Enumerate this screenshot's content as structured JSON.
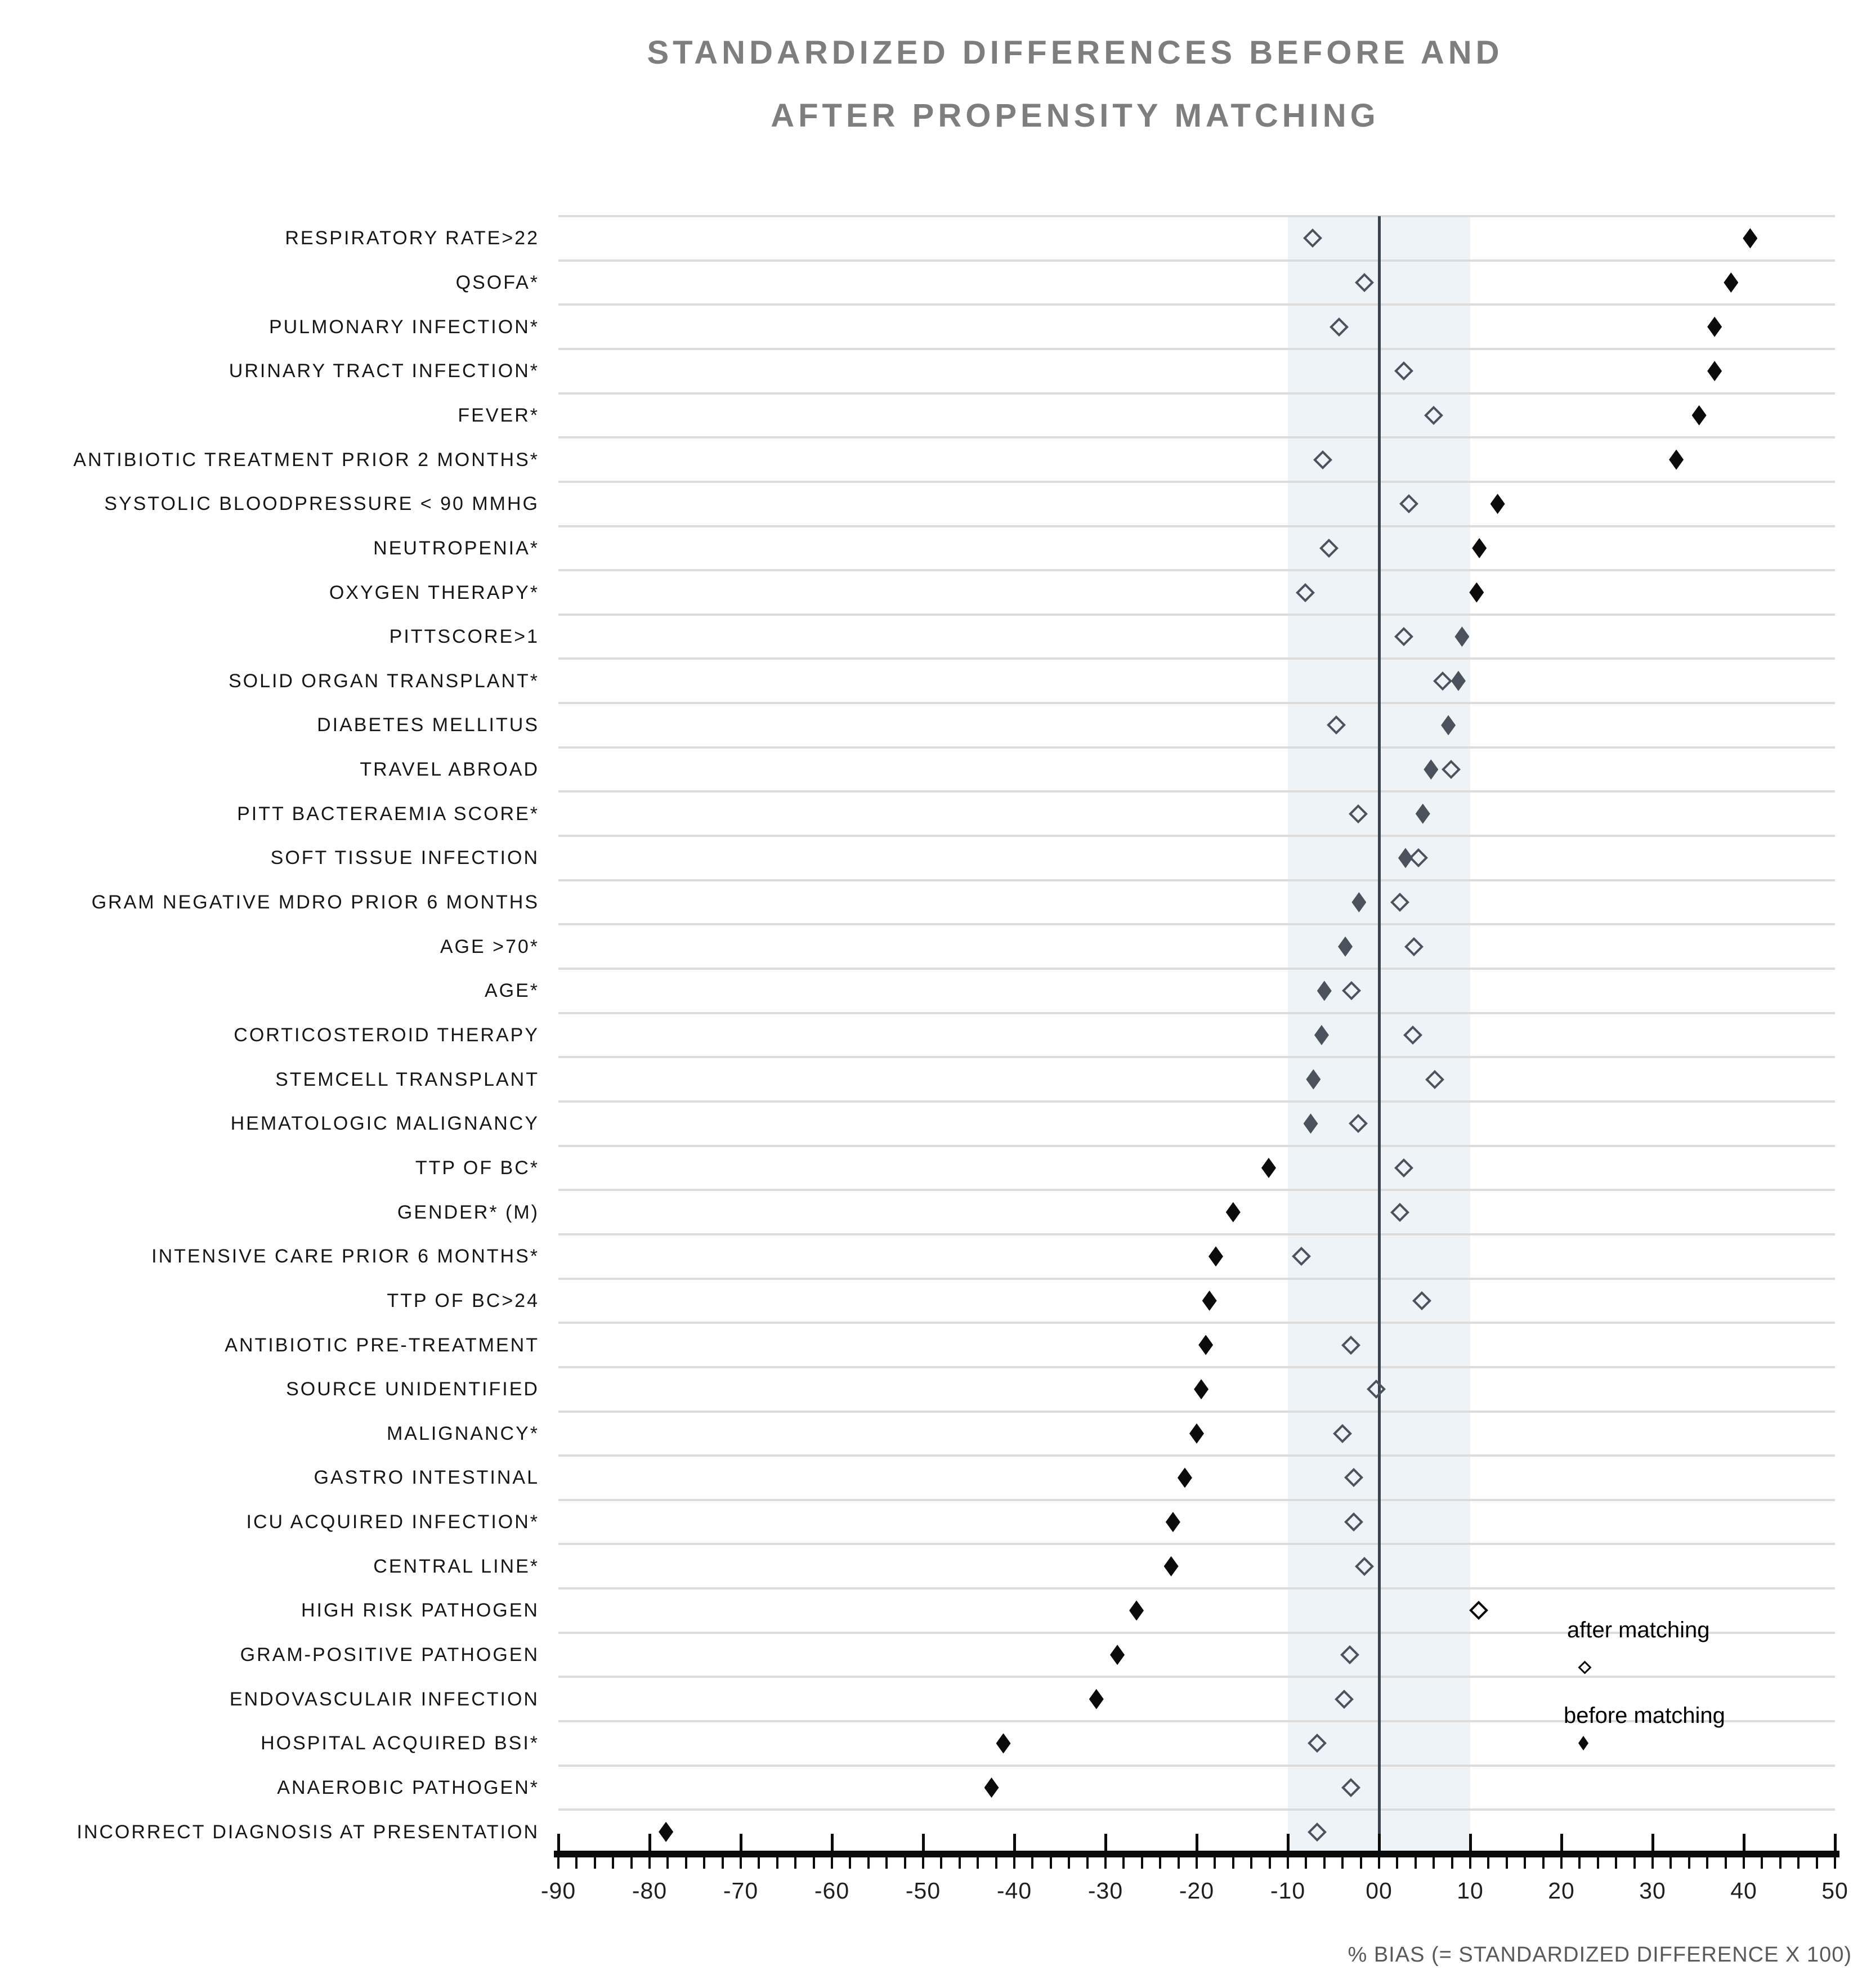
{
  "title": {
    "line1": "STANDARDIZED DIFFERENCES BEFORE AND",
    "line2": "AFTER PROPENSITY MATCHING"
  },
  "xaxis": {
    "label": "% BIAS (= STANDARDIZED DIFFERENCE X 100)",
    "ticks": [
      "-90",
      "-80",
      "-70",
      "-60",
      "-50",
      "-40",
      "-30",
      "-20",
      "-10",
      "00",
      "10",
      "20",
      "30",
      "40",
      "50"
    ]
  },
  "legend": {
    "after": "after matching",
    "before": "before matching"
  },
  "colors": {
    "marker_in_band": "#4a535d",
    "marker_out_band": "#0b0b0b",
    "band_fill": "#eef3f8",
    "gridline": "#dcdcdc",
    "zero_line": "#3a424c",
    "title_text": "#7e7e7e",
    "axis_caption": "#595959"
  },
  "chart_data": {
    "type": "scatter",
    "subtype": "horizontal-dot-plot-love-plot",
    "title": "STANDARDIZED DIFFERENCES BEFORE AND AFTER PROPENSITY MATCHING",
    "xlabel": "% BIAS (= STANDARDIZED DIFFERENCE X 100)",
    "ylabel": "",
    "xlim": [
      -90,
      50
    ],
    "xtick_values": [
      -90,
      -80,
      -70,
      -60,
      -50,
      -40,
      -30,
      -20,
      -10,
      0,
      10,
      20,
      30,
      40,
      50
    ],
    "minor_tick_step": 2,
    "shaded_band": [
      -10,
      10
    ],
    "grid": "horizontal",
    "legend_position": "inside-right",
    "categories": [
      "RESPIRATORY RATE>22",
      "QSOFA*",
      "PULMONARY INFECTION*",
      "URINARY TRACT INFECTION*",
      "FEVER*",
      "ANTIBIOTIC TREATMENT PRIOR 2 MONTHS*",
      "SYSTOLIC BLOODPRESSURE < 90 MMHG",
      "NEUTROPENIA*",
      "OXYGEN THERAPY*",
      "PITTSCORE>1",
      "SOLID ORGAN TRANSPLANT*",
      "DIABETES MELLITUS",
      "TRAVEL ABROAD",
      "PITT BACTERAEMIA SCORE*",
      "SOFT TISSUE INFECTION",
      "GRAM NEGATIVE MDRO PRIOR 6 MONTHS",
      "AGE >70*",
      "AGE*",
      "CORTICOSTEROID THERAPY",
      "STEMCELL TRANSPLANT",
      "HEMATOLOGIC MALIGNANCY",
      "TTP OF BC*",
      "GENDER* (M)",
      "INTENSIVE CARE PRIOR 6 MONTHS*",
      "TTP OF BC>24",
      "ANTIBIOTIC PRE-TREATMENT",
      "SOURCE UNIDENTIFIED",
      "MALIGNANCY*",
      "GASTRO INTESTINAL",
      "ICU ACQUIRED INFECTION*",
      "CENTRAL LINE*",
      "HIGH RISK PATHOGEN",
      "GRAM-POSITIVE PATHOGEN",
      "ENDOVASCULAIR INFECTION",
      "HOSPITAL ACQUIRED BSI*",
      "ANAEROBIC PATHOGEN*",
      "INCORRECT DIAGNOSIS AT PRESENTATION"
    ],
    "series": [
      {
        "name": "before matching",
        "marker": "filled-diamond",
        "values": [
          40.7,
          38.6,
          36.8,
          36.8,
          35.1,
          32.6,
          13.0,
          11.0,
          10.7,
          9.1,
          8.7,
          7.6,
          5.7,
          4.8,
          2.9,
          -2.2,
          -3.7,
          -6.0,
          -6.3,
          -7.2,
          -7.5,
          -12.1,
          -16.0,
          -17.9,
          -18.6,
          -19.0,
          -19.5,
          -20.0,
          -21.3,
          -22.6,
          -22.8,
          -26.6,
          -28.7,
          -31.0,
          -41.2,
          -42.5,
          -78.2
        ]
      },
      {
        "name": "after matching",
        "marker": "open-diamond",
        "values": [
          -7.3,
          -1.6,
          -4.4,
          2.7,
          6.0,
          -6.2,
          3.3,
          -5.5,
          -8.1,
          2.7,
          7.0,
          -4.7,
          7.9,
          -2.3,
          4.3,
          2.3,
          3.8,
          -3.0,
          3.7,
          6.1,
          -2.3,
          2.7,
          2.3,
          -8.5,
          4.7,
          -3.1,
          -0.3,
          -4.0,
          -2.8,
          -2.8,
          -1.6,
          10.9,
          -3.2,
          -3.8,
          -6.8,
          -3.1,
          -6.8
        ]
      }
    ]
  }
}
